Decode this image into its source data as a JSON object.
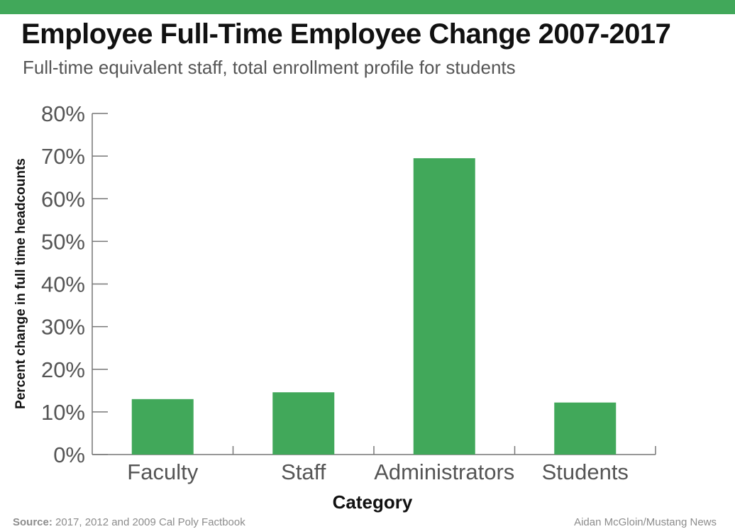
{
  "colors": {
    "accent": "#41a85a",
    "text": "#111111",
    "muted": "#555555",
    "axis": "#777777"
  },
  "footer": {
    "source_label": "Source:",
    "source_text": "2017, 2012 and 2009 Cal Poly Factbook",
    "credit": "Aidan McGloin/Mustang News"
  },
  "chart_data": {
    "type": "bar",
    "title": "Employee Full-Time Employee Change 2007-2017",
    "subtitle": "Full-time equivalent staff, total enrollment profile for students",
    "categories": [
      "Faculty",
      "Staff",
      "Administrators",
      "Students"
    ],
    "values": [
      13,
      14.6,
      69.5,
      12.2
    ],
    "xlabel": "Category",
    "ylabel": "Percent change in full time headcounts",
    "ylim": [
      0,
      80
    ],
    "yticks": [
      "0%",
      "10%",
      "20%",
      "30%",
      "40%",
      "50%",
      "60%",
      "70%",
      "80%"
    ],
    "grid": false,
    "legend": "none"
  }
}
